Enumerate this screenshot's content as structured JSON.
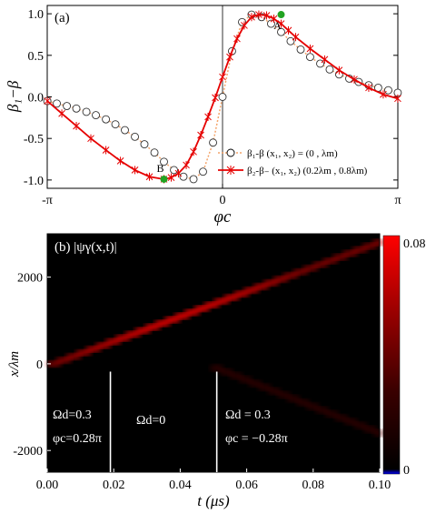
{
  "chart_data": [
    {
      "type": "line",
      "panel_label": "(a)",
      "ylabel": "β₁−β",
      "xlabel": "φc",
      "xlim": [
        -3.14159,
        3.14159
      ],
      "ylim": [
        -1.1,
        1.1
      ],
      "xticks": [
        "-π",
        "0",
        "π"
      ],
      "yticks": [
        "1.0",
        "0.5",
        "0.0",
        "-0.5",
        "-1.0"
      ],
      "grid": false,
      "legend_position": "bottom-right",
      "series": [
        {
          "name": "β₁-β  (x₁, x₂) = (0 , λm)",
          "style": "dotted-line-circles",
          "color": "#f4a46a",
          "x": [
            -3.14,
            -2.97,
            -2.79,
            -2.62,
            -2.44,
            -2.27,
            -2.09,
            -1.92,
            -1.75,
            -1.57,
            -1.4,
            -1.22,
            -1.05,
            -0.87,
            -0.7,
            -0.52,
            -0.35,
            -0.17,
            0.0,
            0.17,
            0.35,
            0.52,
            0.7,
            0.87,
            1.05,
            1.22,
            1.4,
            1.57,
            1.75,
            1.92,
            2.09,
            2.27,
            2.44,
            2.62,
            2.79,
            2.97,
            3.14
          ],
          "y": [
            -0.05,
            -0.08,
            -0.11,
            -0.14,
            -0.18,
            -0.22,
            -0.27,
            -0.33,
            -0.4,
            -0.48,
            -0.57,
            -0.67,
            -0.78,
            -0.88,
            -0.96,
            -0.99,
            -0.9,
            -0.55,
            0.0,
            0.55,
            0.9,
            0.99,
            0.96,
            0.88,
            0.78,
            0.67,
            0.57,
            0.48,
            0.4,
            0.33,
            0.27,
            0.22,
            0.18,
            0.14,
            0.11,
            0.08,
            0.05
          ]
        },
        {
          "name": "β₂-β₋ (x₁, x₂)   (0.2λm , 0.8λm)",
          "style": "solid-line-stars",
          "color": "#e60000",
          "x": [
            -3.14,
            -2.88,
            -2.62,
            -2.36,
            -2.09,
            -1.83,
            -1.57,
            -1.31,
            -1.05,
            -0.92,
            -0.79,
            -0.65,
            -0.52,
            -0.39,
            -0.26,
            -0.13,
            0.0,
            0.13,
            0.26,
            0.39,
            0.52,
            0.65,
            0.79,
            0.92,
            1.05,
            1.18,
            1.31,
            1.57,
            1.83,
            2.09,
            2.36,
            2.62,
            2.88,
            3.14
          ],
          "y": [
            -0.05,
            -0.2,
            -0.35,
            -0.5,
            -0.64,
            -0.77,
            -0.88,
            -0.96,
            -0.99,
            -0.97,
            -0.92,
            -0.82,
            -0.66,
            -0.46,
            -0.24,
            -0.01,
            0.24,
            0.48,
            0.7,
            0.86,
            0.96,
            0.99,
            0.98,
            0.94,
            0.88,
            0.8,
            0.72,
            0.58,
            0.45,
            0.32,
            0.21,
            0.11,
            0.03,
            -0.02
          ]
        }
      ],
      "points": [
        {
          "label": "A",
          "x": 1.05,
          "y": 0.99,
          "color": "#22a322"
        },
        {
          "label": "B",
          "x": -1.05,
          "y": -0.99,
          "color": "#22a322"
        }
      ]
    },
    {
      "type": "heatmap",
      "panel_label": "(b) |ψγ(x,t)|",
      "xlabel": "t (μs)",
      "ylabel": "x/λm",
      "xlim": [
        0.0,
        0.1
      ],
      "ylim": [
        -2500,
        3000
      ],
      "xticks": [
        "0.00",
        "0.02",
        "0.04",
        "0.06",
        "0.08",
        "0.10"
      ],
      "yticks": [
        "2000",
        "0",
        "-2000"
      ],
      "colorbar": {
        "min_label": "0",
        "max_label": "0.08",
        "min": 0,
        "max": 0.08
      },
      "wave_packet": {
        "t0": 0.002,
        "t1": 0.1,
        "x0": 0,
        "x1": 2800
      },
      "annotations": [
        {
          "lines": [
            "Ωd=0.3",
            "φc=0.28π"
          ]
        },
        {
          "lines": [
            "Ωd=0"
          ]
        },
        {
          "lines": [
            "Ωd = 0.3",
            "φc = −0.28π"
          ]
        }
      ],
      "dividers_t": [
        0.019,
        0.051
      ]
    }
  ]
}
